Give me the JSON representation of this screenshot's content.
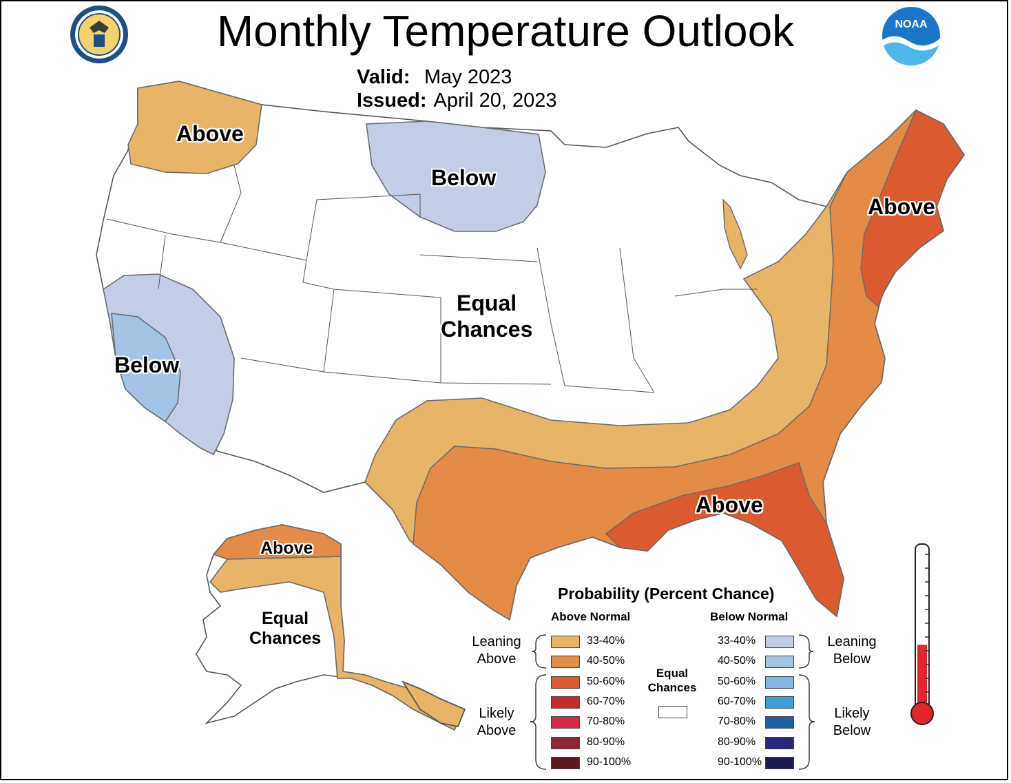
{
  "header": {
    "title": "Monthly Temperature Outlook",
    "valid_label": "Valid:",
    "valid_value": "May 2023",
    "issued_label": "Issued:",
    "issued_value": "April 20, 2023"
  },
  "logos": {
    "left": {
      "name": "department-of-commerce-seal",
      "text": "DEPARTMENT OF COMMERCE · UNITED STATES OF AMERICA"
    },
    "right": {
      "name": "noaa-logo",
      "text": "NOAA"
    }
  },
  "map_labels": {
    "northwest": "Above",
    "north_plains": "Below",
    "northeast": "Above",
    "center_line1": "Equal",
    "center_line2": "Chances",
    "california": "Below",
    "southeast": "Above",
    "alaska_north": "Above",
    "alaska_line1": "Equal",
    "alaska_line2": "Chances"
  },
  "legend": {
    "title": "Probability (Percent Chance)",
    "above_heading": "Above Normal",
    "below_heading": "Below Normal",
    "leaning_above": [
      "Leaning",
      "Above"
    ],
    "likely_above": [
      "Likely",
      "Above"
    ],
    "leaning_below": [
      "Leaning",
      "Below"
    ],
    "likely_below": [
      "Likely",
      "Below"
    ],
    "equal_chances": [
      "Equal",
      "Chances"
    ],
    "above": [
      {
        "range": "33-40%",
        "color": "#e8b468"
      },
      {
        "range": "40-50%",
        "color": "#e38b47"
      },
      {
        "range": "50-60%",
        "color": "#db5a30"
      },
      {
        "range": "60-70%",
        "color": "#c92a28"
      },
      {
        "range": "70-80%",
        "color": "#d42a4a"
      },
      {
        "range": "80-90%",
        "color": "#8b2a36"
      },
      {
        "range": "90-100%",
        "color": "#5c1a1f"
      }
    ],
    "below": [
      {
        "range": "33-40%",
        "color": "#c3cde6"
      },
      {
        "range": "40-50%",
        "color": "#a3c4e4"
      },
      {
        "range": "50-60%",
        "color": "#82b5e2"
      },
      {
        "range": "60-70%",
        "color": "#3a9ed8"
      },
      {
        "range": "70-80%",
        "color": "#1f5fa8"
      },
      {
        "range": "80-90%",
        "color": "#2a2580"
      },
      {
        "range": "90-100%",
        "color": "#1c1850"
      }
    ],
    "equal_color": "#ffffff"
  },
  "thermometer": {
    "name": "thermometer-icon",
    "fill_fraction": 0.39,
    "color": "#e5242b"
  }
}
